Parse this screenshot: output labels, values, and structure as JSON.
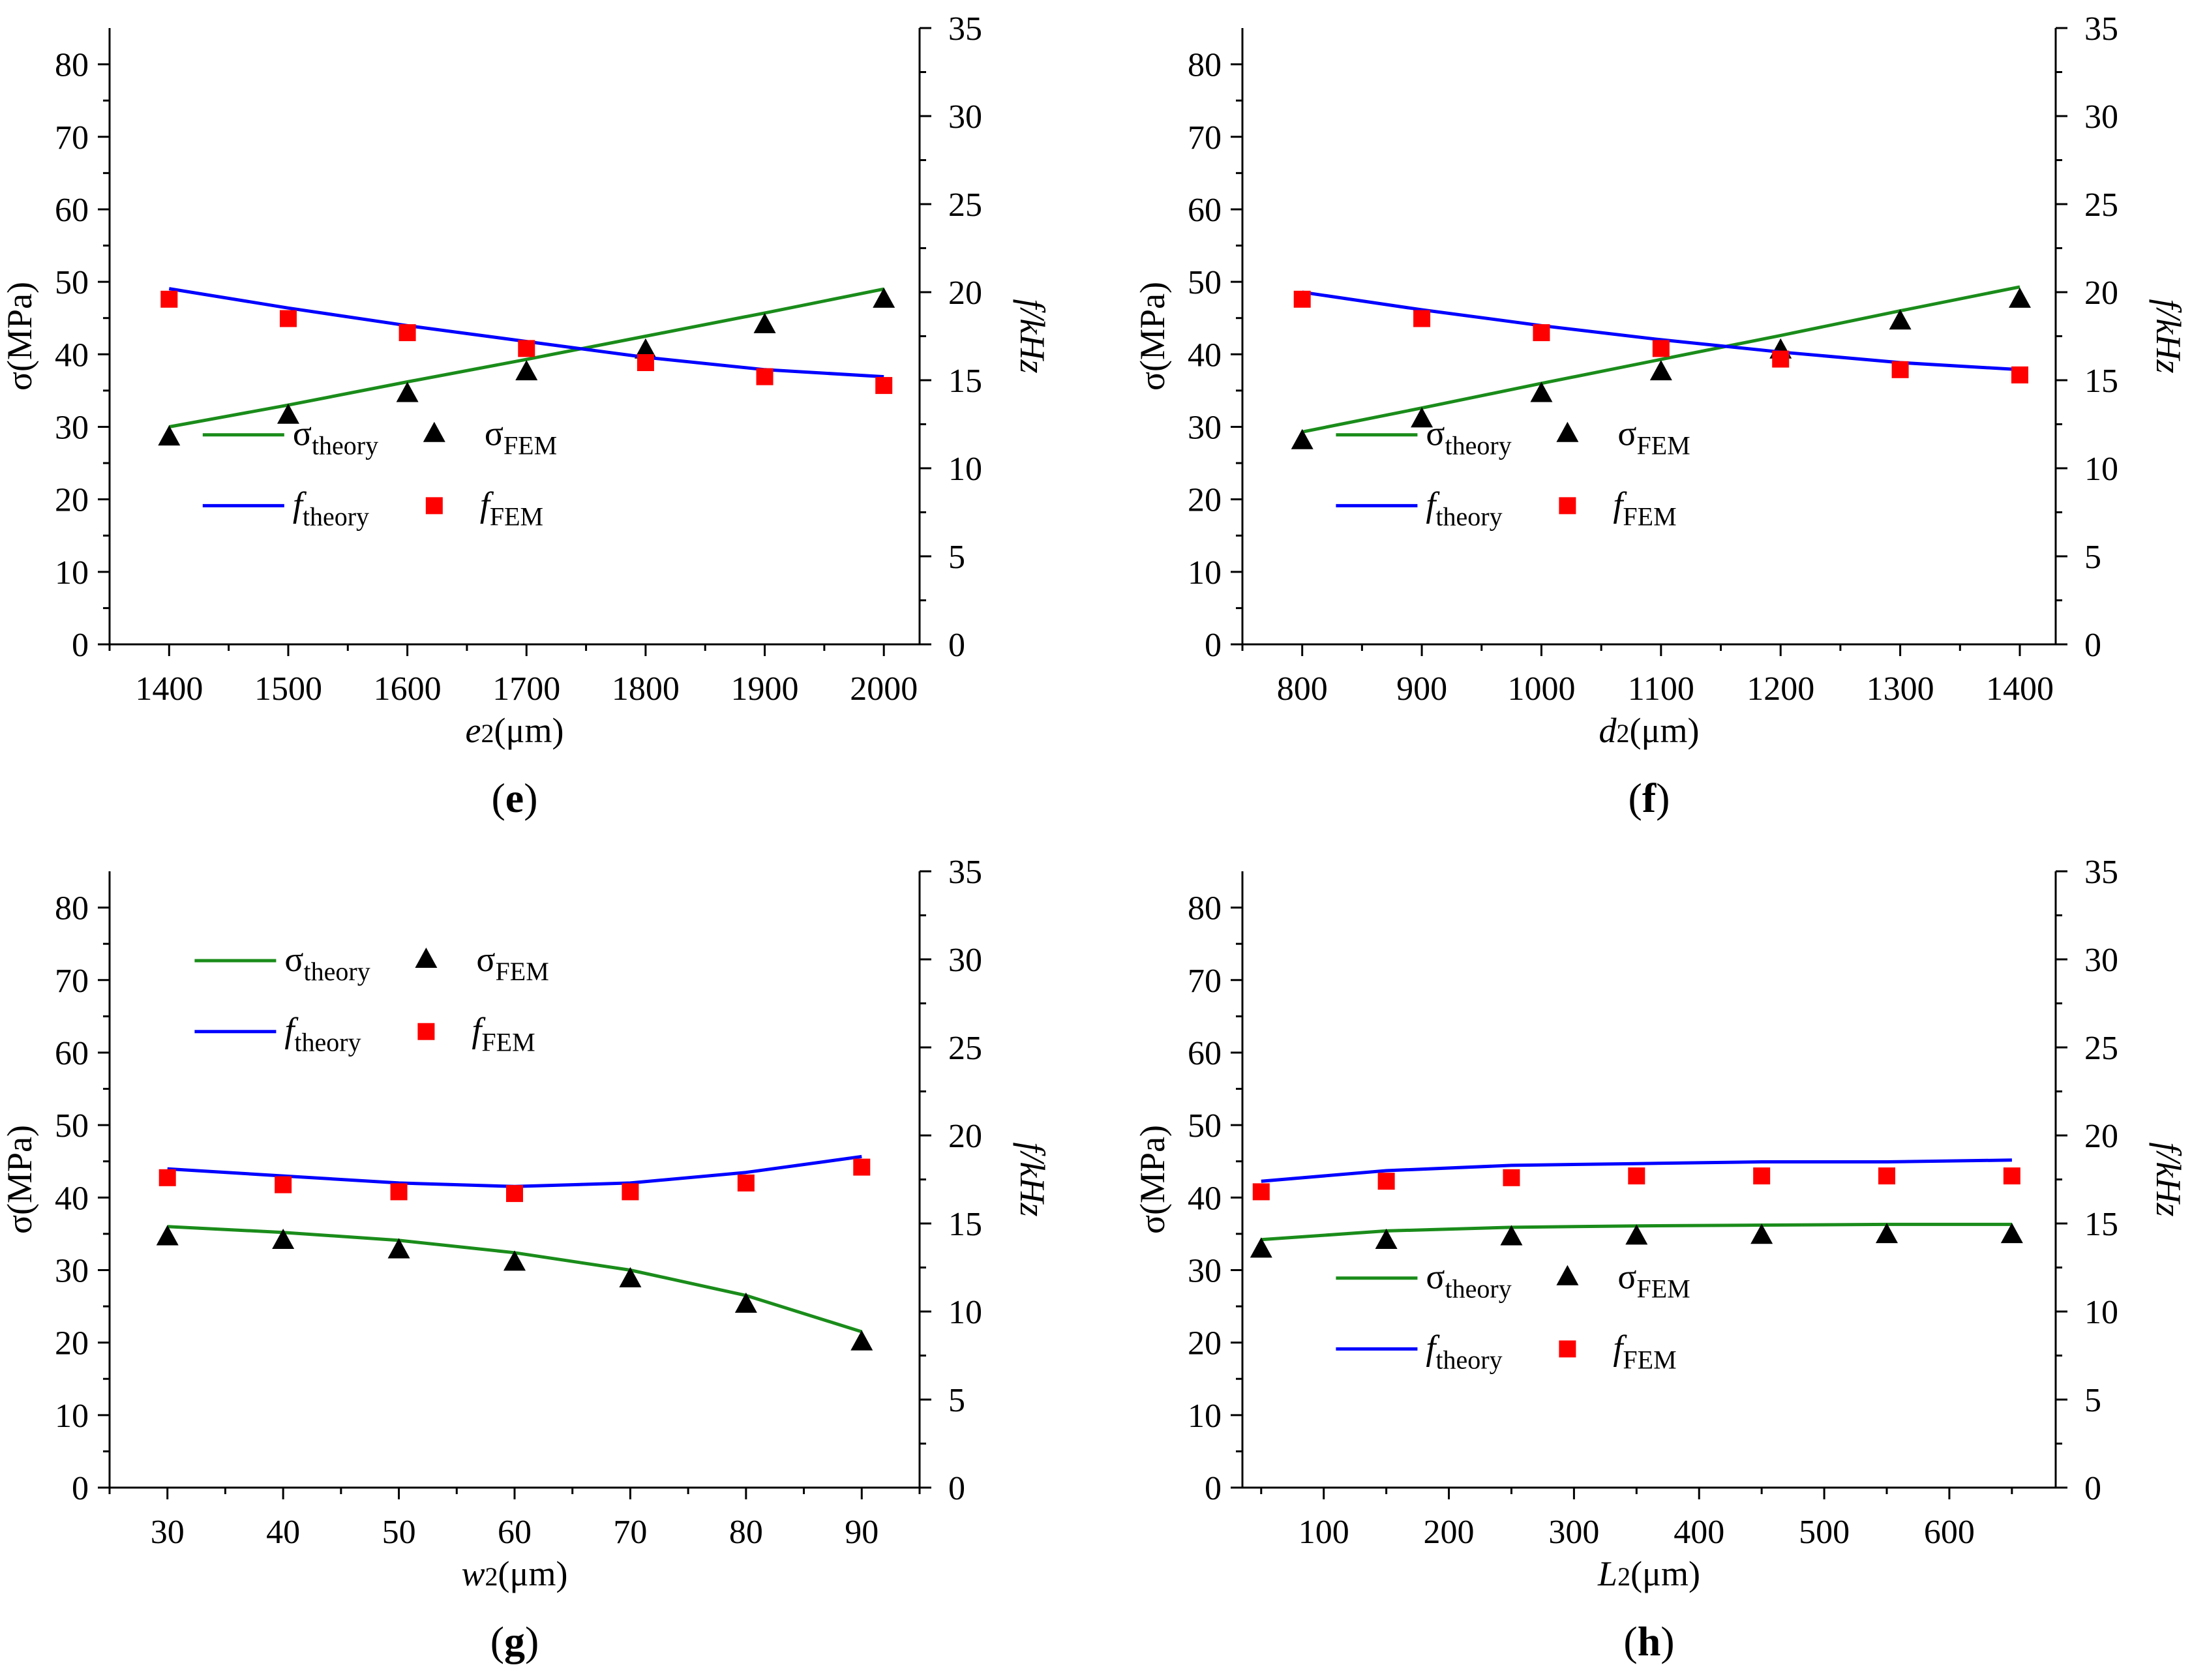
{
  "chart_data": [
    {
      "type": "line",
      "panel_label": "e",
      "xlabel": "e",
      "xlabel_sub": "2",
      "xlabel_unit": "(μm)",
      "ylabel_left": "σ(MPa)",
      "ylabel_right": "f/kHz",
      "xlim": [
        1350,
        2030
      ],
      "xticks": [
        1400,
        1500,
        1600,
        1700,
        1800,
        1900,
        2000
      ],
      "ylim_left": [
        0,
        85
      ],
      "yticks_left": [
        0,
        10,
        20,
        30,
        40,
        50,
        60,
        70,
        80
      ],
      "ylim_right": [
        0,
        35
      ],
      "yticks_right": [
        0,
        5,
        10,
        15,
        20,
        25,
        30,
        35
      ],
      "legend_position": "bottom-center",
      "x": [
        1400,
        1500,
        1600,
        1700,
        1800,
        1900,
        2000
      ],
      "series": [
        {
          "name": "σtheory",
          "axis": "left",
          "kind": "line",
          "color": "#1a8c1a",
          "values": [
            30,
            33,
            36.2,
            39.3,
            42.5,
            45.7,
            49
          ]
        },
        {
          "name": "σFEM",
          "axis": "left",
          "kind": "triangle",
          "color": "#000000",
          "values": [
            28.5,
            31.5,
            34.5,
            37.5,
            40.5,
            44,
            47.5
          ]
        },
        {
          "name": "ftheory",
          "axis": "right",
          "kind": "line",
          "color": "#0000ff",
          "values": [
            20.2,
            19.1,
            18.1,
            17.2,
            16.3,
            15.6,
            15.2
          ]
        },
        {
          "name": "fFEM",
          "axis": "right",
          "kind": "square",
          "color": "#ff0000",
          "values": [
            19.6,
            18.5,
            17.7,
            16.8,
            16,
            15.2,
            14.7
          ]
        }
      ]
    },
    {
      "type": "line",
      "panel_label": "f",
      "xlabel": "d",
      "xlabel_sub": "2",
      "xlabel_unit": "(μm)",
      "ylabel_left": "σ(MPa)",
      "ylabel_right": "f/kHz",
      "xlim": [
        750,
        1430
      ],
      "xticks": [
        800,
        900,
        1000,
        1100,
        1200,
        1300,
        1400
      ],
      "ylim_left": [
        0,
        85
      ],
      "yticks_left": [
        0,
        10,
        20,
        30,
        40,
        50,
        60,
        70,
        80
      ],
      "ylim_right": [
        0,
        35
      ],
      "yticks_right": [
        0,
        5,
        10,
        15,
        20,
        25,
        30,
        35
      ],
      "legend_position": "bottom-center",
      "x": [
        800,
        900,
        1000,
        1100,
        1200,
        1300,
        1400
      ],
      "series": [
        {
          "name": "σtheory",
          "axis": "left",
          "kind": "line",
          "color": "#1a8c1a",
          "values": [
            29.3,
            32.6,
            36,
            39.3,
            42.6,
            46,
            49.3
          ]
        },
        {
          "name": "σFEM",
          "axis": "left",
          "kind": "triangle",
          "color": "#000000",
          "values": [
            28,
            31,
            34.5,
            37.5,
            40.5,
            44.5,
            47.5
          ]
        },
        {
          "name": "ftheory",
          "axis": "right",
          "kind": "line",
          "color": "#0000ff",
          "values": [
            20,
            19,
            18.1,
            17.3,
            16.6,
            16,
            15.6
          ]
        },
        {
          "name": "fFEM",
          "axis": "right",
          "kind": "square",
          "color": "#ff0000",
          "values": [
            19.6,
            18.5,
            17.7,
            16.8,
            16.2,
            15.6,
            15.3
          ]
        }
      ]
    },
    {
      "type": "line",
      "panel_label": "g",
      "xlabel": "w",
      "xlabel_sub": "2",
      "xlabel_unit": "(μm)",
      "ylabel_left": "σ(MPa)",
      "ylabel_right": "f/kHz",
      "xlim": [
        25,
        95
      ],
      "xticks": [
        30,
        40,
        50,
        60,
        70,
        80,
        90
      ],
      "ylim_left": [
        0,
        85
      ],
      "yticks_left": [
        0,
        10,
        20,
        30,
        40,
        50,
        60,
        70,
        80
      ],
      "ylim_right": [
        0,
        35
      ],
      "yticks_right": [
        0,
        5,
        10,
        15,
        20,
        25,
        30,
        35
      ],
      "legend_position": "top-center",
      "x": [
        30,
        40,
        50,
        60,
        70,
        80,
        90
      ],
      "series": [
        {
          "name": "σtheory",
          "axis": "left",
          "kind": "line",
          "color": "#1a8c1a",
          "values": [
            36,
            35.2,
            34.1,
            32.4,
            30,
            26.5,
            21.5
          ]
        },
        {
          "name": "σFEM",
          "axis": "left",
          "kind": "triangle",
          "color": "#000000",
          "values": [
            34.5,
            34,
            32.7,
            31,
            28.7,
            25.2,
            20
          ]
        },
        {
          "name": "ftheory",
          "axis": "right",
          "kind": "line",
          "color": "#0000ff",
          "values": [
            18.1,
            17.7,
            17.3,
            17.1,
            17.3,
            17.9,
            18.8
          ]
        },
        {
          "name": "fFEM",
          "axis": "right",
          "kind": "square",
          "color": "#ff0000",
          "values": [
            17.6,
            17.2,
            16.8,
            16.7,
            16.8,
            17.3,
            18.2
          ]
        }
      ]
    },
    {
      "type": "line",
      "panel_label": "h",
      "xlabel": "L",
      "xlabel_sub": "2",
      "xlabel_unit": "(μm)",
      "ylabel_left": "σ(MPa)",
      "ylabel_right": "f/kHz",
      "xlim": [
        35,
        685
      ],
      "xticks": [
        100,
        200,
        300,
        400,
        500,
        600
      ],
      "ylim_left": [
        0,
        85
      ],
      "yticks_left": [
        0,
        10,
        20,
        30,
        40,
        50,
        60,
        70,
        80
      ],
      "ylim_right": [
        0,
        35
      ],
      "yticks_right": [
        0,
        5,
        10,
        15,
        20,
        25,
        30,
        35
      ],
      "legend_position": "bottom-center",
      "x": [
        50,
        150,
        250,
        350,
        450,
        550,
        650
      ],
      "series": [
        {
          "name": "σtheory",
          "axis": "left",
          "kind": "line",
          "color": "#1a8c1a",
          "values": [
            34.2,
            35.4,
            35.9,
            36.1,
            36.2,
            36.3,
            36.3
          ]
        },
        {
          "name": "σFEM",
          "axis": "left",
          "kind": "triangle",
          "color": "#000000",
          "values": [
            32.8,
            34,
            34.5,
            34.6,
            34.7,
            34.8,
            34.8
          ]
        },
        {
          "name": "ftheory",
          "axis": "right",
          "kind": "line",
          "color": "#0000ff",
          "values": [
            17.4,
            18,
            18.3,
            18.4,
            18.5,
            18.5,
            18.6
          ]
        },
        {
          "name": "fFEM",
          "axis": "right",
          "kind": "square",
          "color": "#ff0000",
          "values": [
            16.8,
            17.4,
            17.6,
            17.7,
            17.7,
            17.7,
            17.7
          ]
        }
      ]
    }
  ],
  "legend": {
    "sigma_symbol": "σ",
    "f_symbol": "f",
    "theory_sub": "theory",
    "fem_sub": "FEM"
  }
}
